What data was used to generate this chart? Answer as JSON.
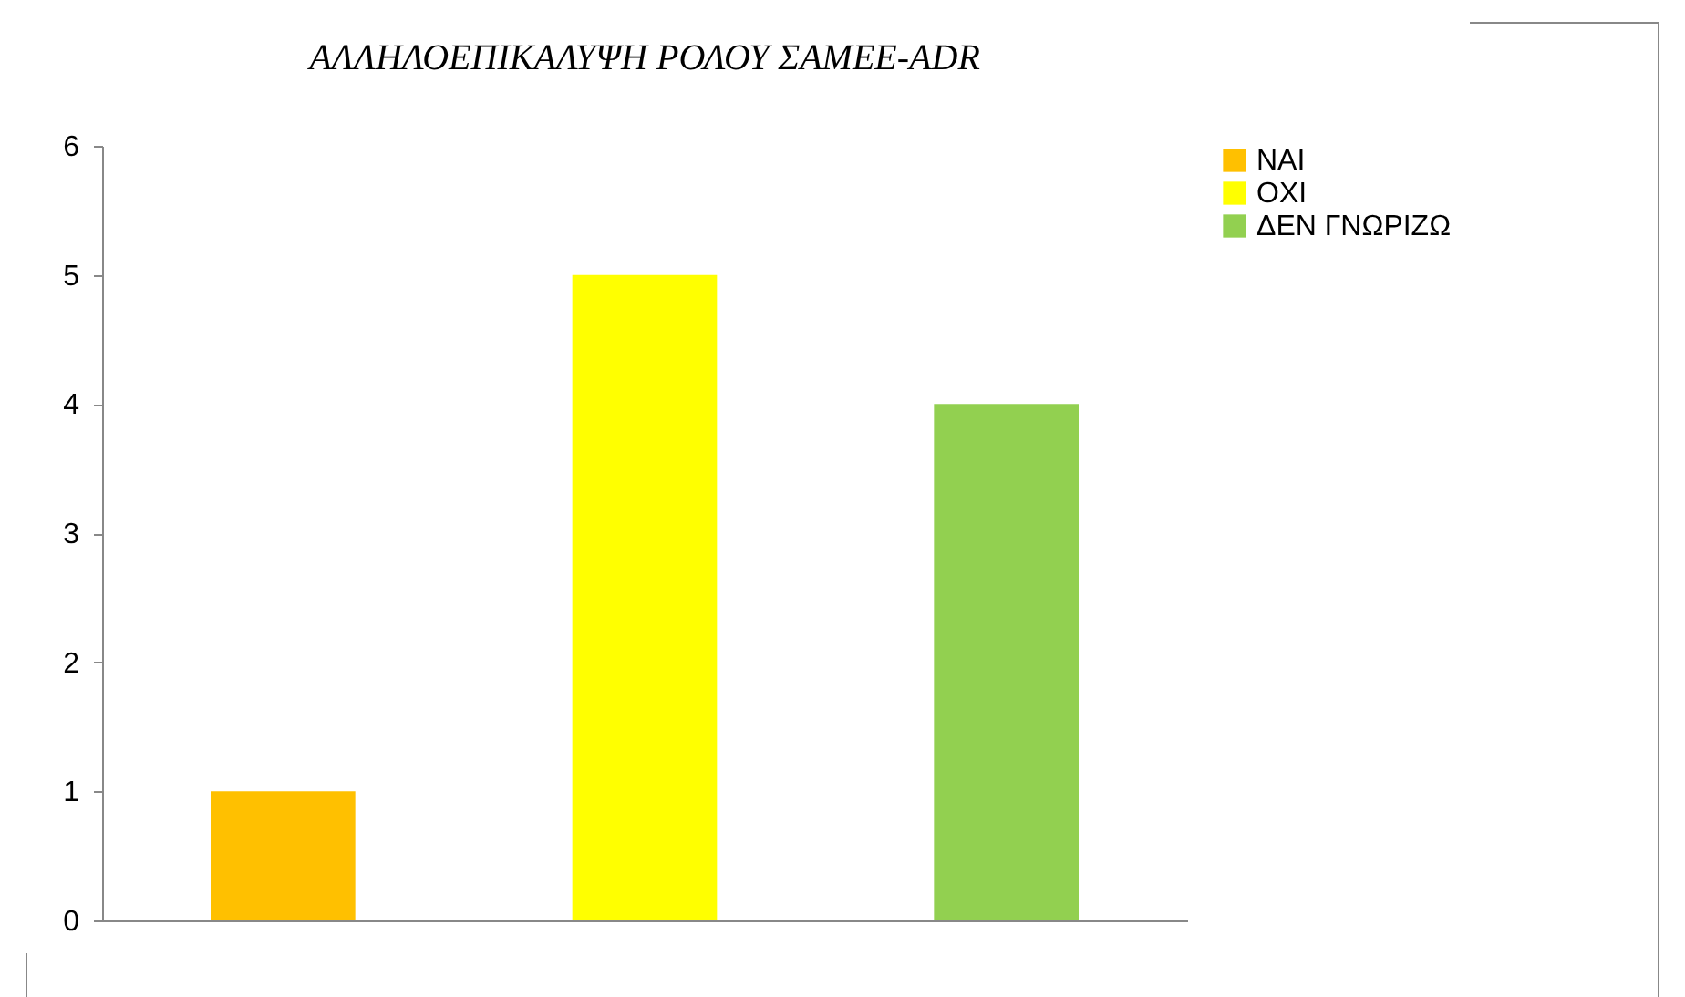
{
  "chart_data": {
    "type": "bar",
    "title": "ΑΛΛΗΛΟΕΠΙΚΑΛΥΨΗ ΡΟΛΟΥ ΣΑΜΕΕ-ADR",
    "categories": [
      null,
      null,
      null
    ],
    "series": [
      {
        "name": "ΝΑΙ",
        "color": "#ffc000",
        "values": [
          1,
          null,
          null
        ]
      },
      {
        "name": "ΟΧΙ",
        "color": "#ffff00",
        "values": [
          null,
          5,
          null
        ]
      },
      {
        "name": "ΔΕΝ ΓΝΩΡΙΖΩ",
        "color": "#92d050",
        "values": [
          null,
          null,
          4
        ]
      }
    ],
    "ylim": [
      0,
      6
    ],
    "yticks": [
      0,
      1,
      2,
      3,
      4,
      5,
      6
    ],
    "legend": "right",
    "tick_labels": "y"
  }
}
